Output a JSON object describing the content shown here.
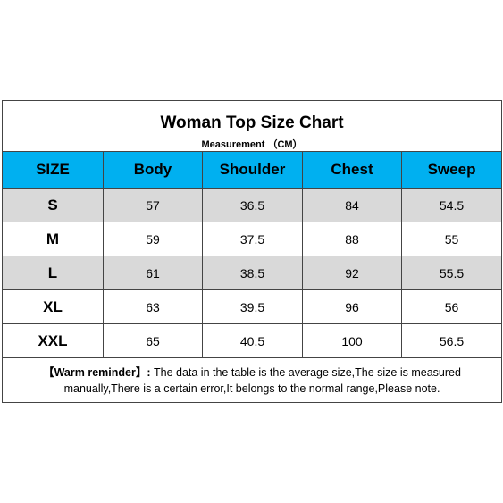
{
  "header": {
    "title": "Woman Top Size Chart",
    "subtitle": "Measurement （CM）"
  },
  "table": {
    "columns": [
      "SIZE",
      "Body",
      "Shoulder",
      "Chest",
      "Sweep"
    ],
    "rows": [
      [
        "S",
        57,
        36.5,
        84,
        54.5
      ],
      [
        "M",
        59,
        37.5,
        88,
        55
      ],
      [
        "L",
        61,
        38.5,
        92,
        55.5
      ],
      [
        "XL",
        63,
        39.5,
        96,
        56
      ],
      [
        "XXL",
        65,
        40.5,
        100,
        56.5
      ]
    ]
  },
  "note": {
    "label": "【Warm reminder】:",
    "text": "The data in the table is the average size,The size is measured manually,There is a certain error,It belongs to the normal range,Please note."
  }
}
